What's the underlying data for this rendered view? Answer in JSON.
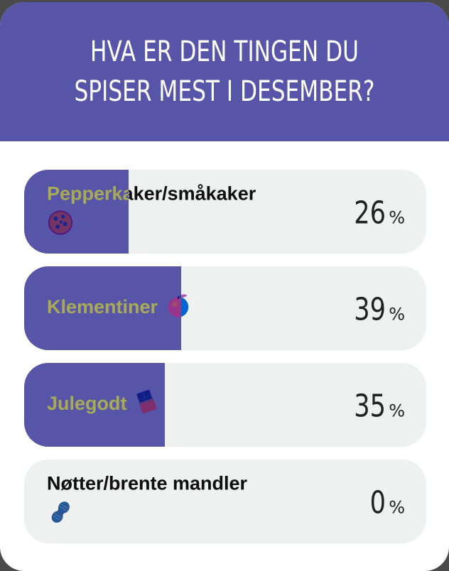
{
  "poll": {
    "question": "HVA ER DEN TINGEN DU SPISER MEST I DESEMBER?",
    "options": [
      {
        "label": "Pepperkaker/småkaker",
        "emoji": "cookie-icon",
        "percent": "26",
        "percent_sign": "%",
        "share": 0.26
      },
      {
        "label": "Klementiner",
        "emoji": "tangerine-icon",
        "percent": "39",
        "percent_sign": "%",
        "share": 0.39
      },
      {
        "label": "Julegodt",
        "emoji": "chocolate-bar-icon",
        "percent": "35",
        "percent_sign": "%",
        "share": 0.35
      },
      {
        "label": "Nøtter/brente mandler",
        "emoji": "peanut-icon",
        "percent": "0",
        "percent_sign": "%",
        "share": 0
      }
    ]
  },
  "colors": {
    "accent": "#5655a8",
    "track": "#eff0f0",
    "background": "#ffffff"
  }
}
